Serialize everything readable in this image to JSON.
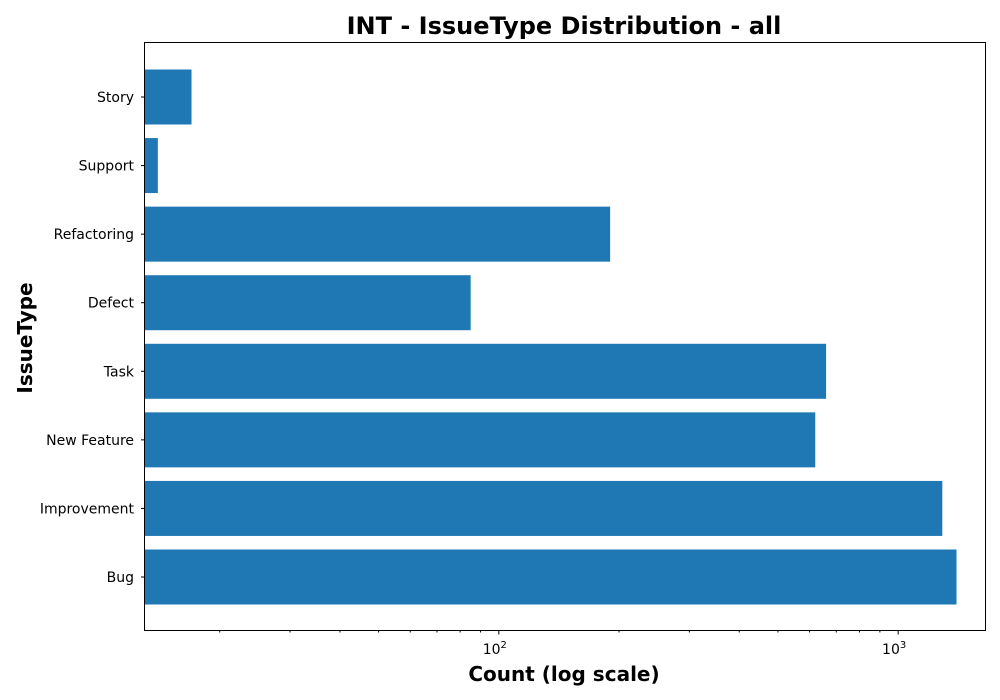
{
  "chart_data": {
    "type": "bar",
    "orientation": "horizontal",
    "title": "INT - IssueType Distribution - all",
    "xlabel": "Count (log scale)",
    "ylabel": "IssueType",
    "x_scale": "log",
    "xlim": [
      13,
      1650
    ],
    "x_major_ticks": [
      {
        "value": 100,
        "label_base": "10",
        "label_exp": "2"
      },
      {
        "value": 1000,
        "label_base": "10",
        "label_exp": "3"
      }
    ],
    "categories": [
      "Story",
      "Support",
      "Refactoring",
      "Defect",
      "Task",
      "New Feature",
      "Improvement",
      "Bug"
    ],
    "values": [
      17,
      14,
      190,
      85,
      660,
      620,
      1290,
      1400
    ],
    "bar_color": "#1f77b4",
    "grid": false,
    "legend": "none"
  }
}
